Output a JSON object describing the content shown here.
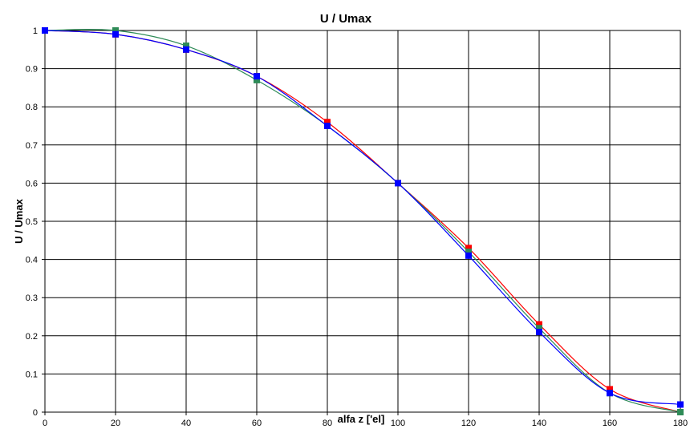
{
  "chart_data": {
    "type": "line",
    "title": "U / Umax",
    "xlabel": "alfa z ['el]",
    "ylabel": "U / Umax",
    "xlim": [
      0,
      180
    ],
    "ylim": [
      0,
      1
    ],
    "grid": true,
    "legend": "none",
    "x_ticks": [
      "0",
      "20",
      "40",
      "60",
      "80",
      "100",
      "120",
      "140",
      "160",
      "180"
    ],
    "y_ticks": [
      "0",
      "0.1",
      "0.2",
      "0.3",
      "0.4",
      "0.5",
      "0.6",
      "0.7",
      "0.8",
      "0.9",
      "1"
    ],
    "x": [
      0,
      20,
      40,
      60,
      80,
      100,
      120,
      140,
      160,
      180
    ],
    "series": [
      {
        "color": "#ff0000",
        "values": [
          1.0,
          0.99,
          0.95,
          0.88,
          0.76,
          0.6,
          0.43,
          0.23,
          0.06,
          0.0
        ]
      },
      {
        "color": "#2e8b57",
        "values": [
          1.0,
          1.0,
          0.96,
          0.87,
          0.75,
          0.6,
          0.42,
          0.22,
          0.05,
          0.0
        ]
      },
      {
        "color": "#0000ff",
        "values": [
          1.0,
          0.99,
          0.95,
          0.88,
          0.75,
          0.6,
          0.41,
          0.21,
          0.05,
          0.02
        ]
      }
    ]
  }
}
